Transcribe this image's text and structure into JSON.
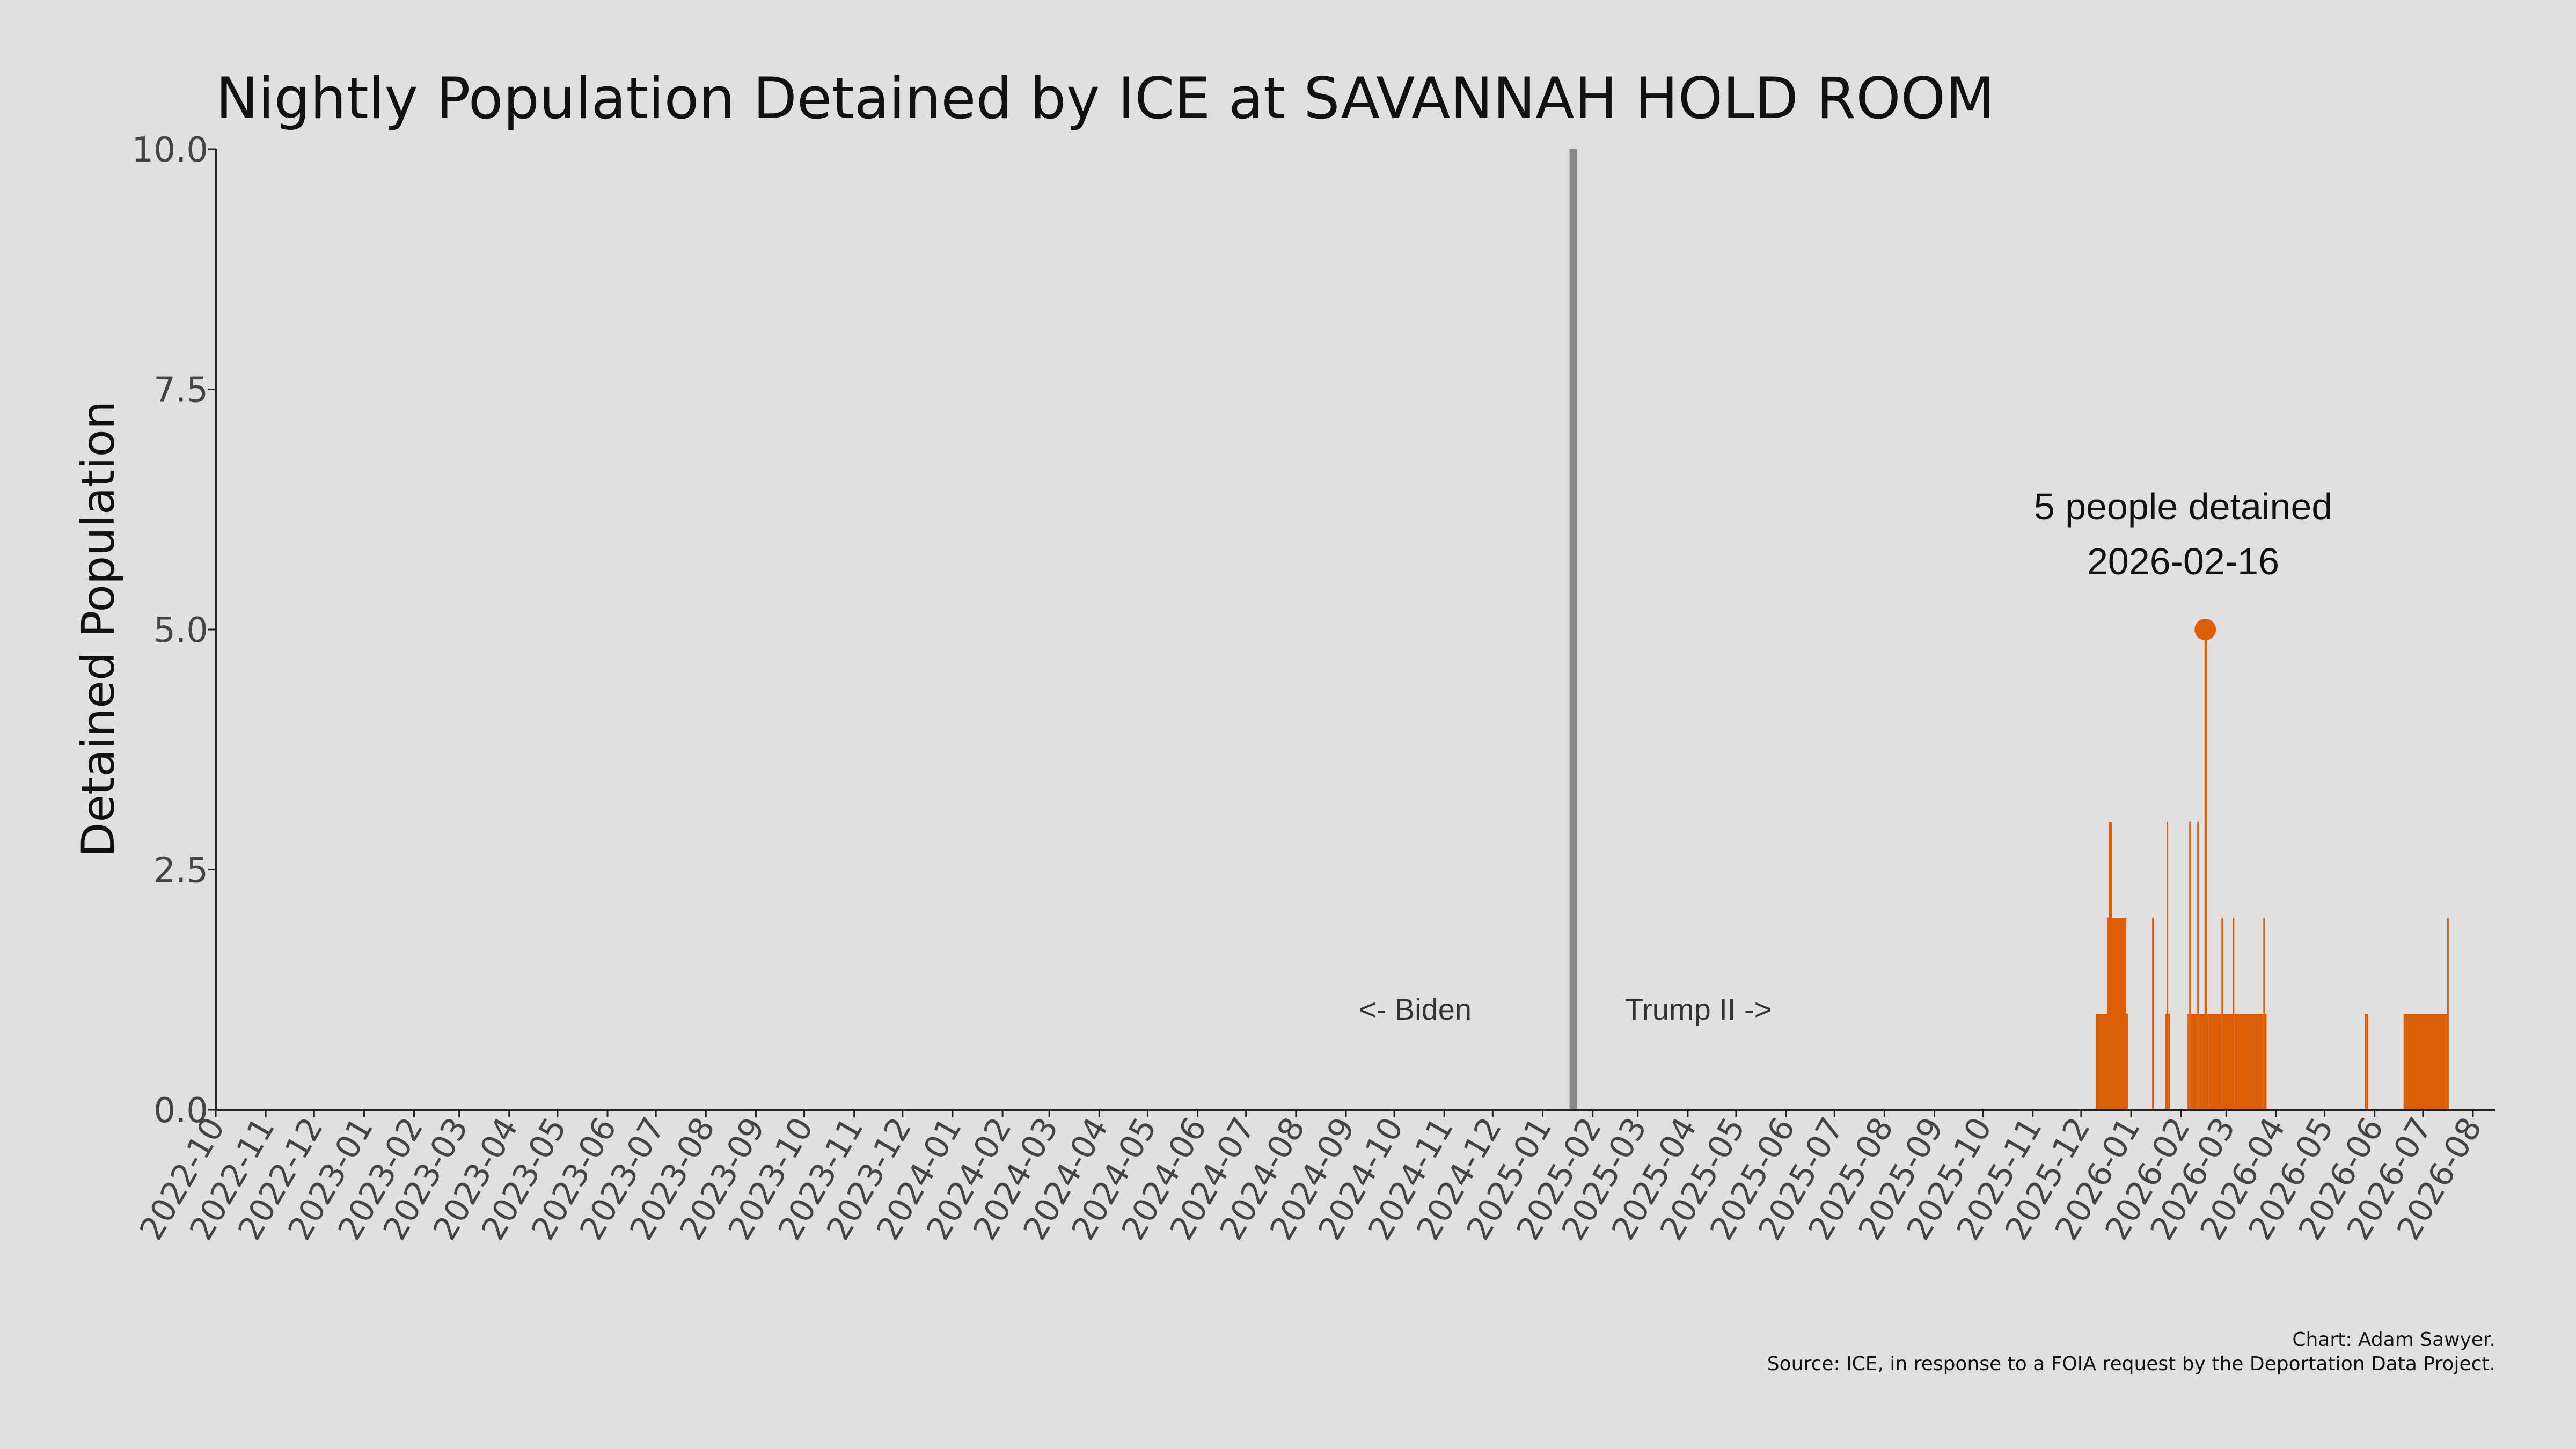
{
  "chart_data": {
    "type": "area",
    "title": "Nightly Population Detained by ICE at SAVANNAH HOLD ROOM",
    "ylabel": "Detained Population",
    "xlabel": "",
    "xlim": [
      "2022-10-01",
      "2026-08-15"
    ],
    "ylim": [
      0,
      10
    ],
    "yticks": [
      0,
      2.5,
      5,
      7.5,
      10
    ],
    "ytick_labels": [
      "0.0",
      "2.5",
      "5.0",
      "7.5",
      "10.0"
    ],
    "xtick_labels": [
      "2022-10",
      "2022-11",
      "2022-12",
      "2023-01",
      "2023-02",
      "2023-03",
      "2023-04",
      "2023-05",
      "2023-06",
      "2023-07",
      "2023-08",
      "2023-09",
      "2023-10",
      "2023-11",
      "2023-12",
      "2024-01",
      "2024-02",
      "2024-03",
      "2024-04",
      "2024-05",
      "2024-06",
      "2024-07",
      "2024-08",
      "2024-09",
      "2024-10",
      "2024-11",
      "2024-12",
      "2025-01",
      "2025-02",
      "2025-03",
      "2025-04",
      "2025-05",
      "2025-06",
      "2025-07",
      "2025-08",
      "2025-09",
      "2025-10",
      "2025-11",
      "2025-12",
      "2026-01",
      "2026-02",
      "2026-03",
      "2026-04",
      "2026-05",
      "2026-06",
      "2026-07",
      "2026-08"
    ],
    "grid": false,
    "series": [
      {
        "color": "#db5f06",
        "x": [
          "2025-12-09",
          "2025-12-10",
          "2025-12-17",
          "2025-12-18",
          "2025-12-19",
          "2025-12-20",
          "2025-12-29",
          "2025-12-30",
          "2026-01-14",
          "2026-01-15",
          "2026-01-22",
          "2026-01-23",
          "2026-01-24",
          "2026-01-25",
          "2026-02-05",
          "2026-02-06",
          "2026-02-07",
          "2026-02-10",
          "2026-02-11",
          "2026-02-12",
          "2026-02-16",
          "2026-02-17",
          "2026-02-18",
          "2026-02-26",
          "2026-02-27",
          "2026-03-05",
          "2026-03-06",
          "2026-03-16",
          "2026-03-24",
          "2026-03-25",
          "2026-03-26",
          "2026-04-15",
          "2026-05-26",
          "2026-05-27",
          "2026-05-28",
          "2026-06-19",
          "2026-06-20",
          "2026-07-15",
          "2026-07-16",
          "2026-07-17"
        ],
        "values": [
          0,
          1,
          2,
          3,
          3,
          2,
          1,
          0,
          2,
          0,
          1,
          3,
          1,
          0,
          1,
          3,
          1,
          1,
          3,
          1,
          5,
          1,
          1,
          2,
          1,
          2,
          1,
          1,
          2,
          1,
          0,
          0,
          1,
          1,
          0,
          1,
          1,
          1,
          2,
          0
        ]
      }
    ],
    "highlight": {
      "x": "2026-02-16",
      "y": 5,
      "color": "#db5f06"
    },
    "annotation_lines": [
      "5 people detained",
      "2026-02-16"
    ],
    "reference_line": {
      "x": "2025-01-20",
      "color": "#888888"
    },
    "era_labels": {
      "left": "<- Biden",
      "right": "Trump II ->"
    },
    "credit_lines": [
      "Chart: Adam Sawyer.",
      "Source: ICE, in response to a FOIA request by the Deportation Data Project."
    ]
  }
}
